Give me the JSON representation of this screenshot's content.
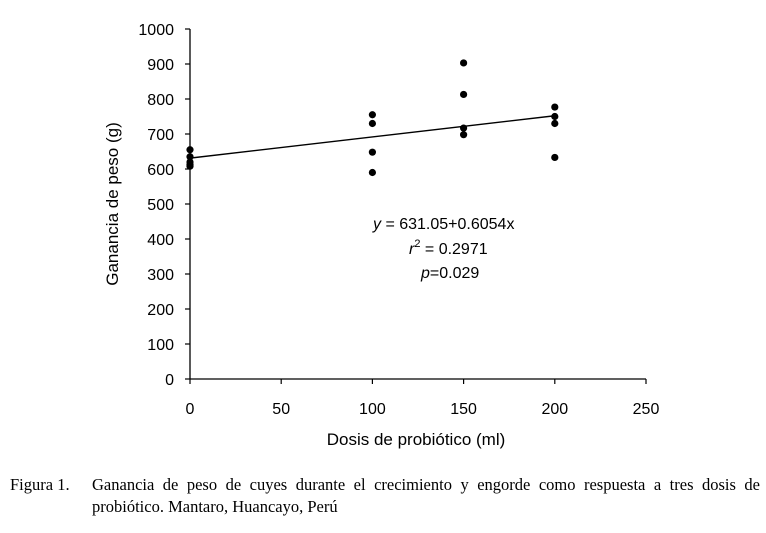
{
  "chart_data": {
    "type": "scatter",
    "xlabel": "Dosis de probiótico (ml)",
    "ylabel": "Ganancia de peso (g)",
    "xlim": [
      0,
      250
    ],
    "ylim": [
      0,
      1000
    ],
    "xticks": [
      0,
      50,
      100,
      150,
      200,
      250
    ],
    "yticks": [
      0,
      100,
      200,
      300,
      400,
      500,
      600,
      700,
      800,
      900,
      1000
    ],
    "grid": false,
    "points": [
      {
        "x": 0,
        "y": 655
      },
      {
        "x": 0,
        "y": 635
      },
      {
        "x": 0,
        "y": 620
      },
      {
        "x": 0,
        "y": 612
      },
      {
        "x": 0,
        "y": 608
      },
      {
        "x": 100,
        "y": 755
      },
      {
        "x": 100,
        "y": 730
      },
      {
        "x": 100,
        "y": 648
      },
      {
        "x": 100,
        "y": 590
      },
      {
        "x": 150,
        "y": 903
      },
      {
        "x": 150,
        "y": 813
      },
      {
        "x": 150,
        "y": 717
      },
      {
        "x": 150,
        "y": 698
      },
      {
        "x": 200,
        "y": 777
      },
      {
        "x": 200,
        "y": 750
      },
      {
        "x": 200,
        "y": 730
      },
      {
        "x": 200,
        "y": 633
      }
    ],
    "trendline": {
      "intercept": 631.05,
      "slope": 0.6054,
      "x_start": 0,
      "x_end": 200
    },
    "annotation": {
      "equation_var": "y",
      "equation_rest": " = 631.05+0.6054x",
      "r2_var": "r",
      "r2_sup": "2",
      "r2_rest": " = 0.2971",
      "p_var": "p",
      "p_rest": "=0.029"
    }
  },
  "caption": {
    "label": "Figura 1.",
    "text": "Ganancia de peso de cuyes durante el crecimiento y engorde como respuesta a tres dosis de probiótico. Mantaro, Huancayo, Perú"
  }
}
